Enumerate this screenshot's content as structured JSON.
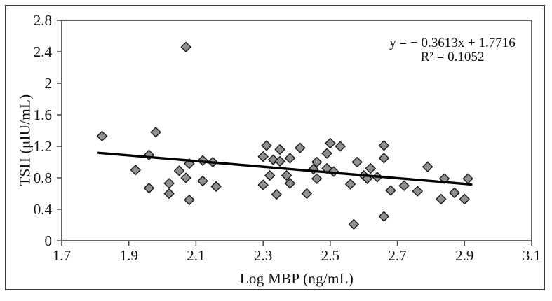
{
  "chart_data": {
    "type": "scatter",
    "title": "",
    "xlabel": "Log MBP (ng/mL)",
    "ylabel": "TSH (μIU/mL)",
    "xlim": [
      1.7,
      3.1
    ],
    "ylim": [
      0,
      2.8
    ],
    "x_ticks": [
      1.7,
      1.9,
      2.1,
      2.3,
      2.5,
      2.7,
      2.9,
      3.1
    ],
    "x_tick_labels": [
      "1.7",
      "1.9",
      "2.1",
      "2.3",
      "2.5",
      "2.7",
      "2.9",
      "3.1"
    ],
    "y_ticks": [
      0,
      0.4,
      0.8,
      1.2,
      1.6,
      2,
      2.4,
      2.8
    ],
    "y_tick_labels": [
      "0",
      "0.4",
      "0.8",
      "1.2",
      "1.6",
      "2",
      "2.4",
      "2.8"
    ],
    "grid": false,
    "legend": null,
    "annotation": {
      "line1": "y = − 0.3613x + 1.7716",
      "line2": "R² = 0.1052"
    },
    "trendline": {
      "slope": -0.3613,
      "intercept": 1.7716,
      "x_start": 1.81,
      "x_end": 2.92
    },
    "points": [
      [
        1.82,
        1.33
      ],
      [
        1.92,
        0.9
      ],
      [
        1.96,
        1.09
      ],
      [
        1.98,
        1.38
      ],
      [
        1.96,
        0.67
      ],
      [
        2.02,
        0.73
      ],
      [
        2.02,
        0.6
      ],
      [
        2.05,
        0.89
      ],
      [
        2.07,
        2.46
      ],
      [
        2.07,
        0.8
      ],
      [
        2.08,
        0.98
      ],
      [
        2.08,
        0.52
      ],
      [
        2.12,
        1.02
      ],
      [
        2.15,
        1.0
      ],
      [
        2.12,
        0.76
      ],
      [
        2.16,
        0.69
      ],
      [
        2.3,
        1.07
      ],
      [
        2.31,
        1.21
      ],
      [
        2.33,
        1.03
      ],
      [
        2.35,
        1.01
      ],
      [
        2.35,
        1.16
      ],
      [
        2.38,
        1.05
      ],
      [
        2.41,
        1.18
      ],
      [
        2.32,
        0.83
      ],
      [
        2.37,
        0.83
      ],
      [
        2.38,
        0.73
      ],
      [
        2.3,
        0.71
      ],
      [
        2.34,
        0.59
      ],
      [
        2.43,
        0.6
      ],
      [
        2.46,
        1.0
      ],
      [
        2.45,
        0.91
      ],
      [
        2.49,
        0.92
      ],
      [
        2.51,
        0.88
      ],
      [
        2.46,
        0.79
      ],
      [
        2.49,
        1.11
      ],
      [
        2.5,
        1.24
      ],
      [
        2.53,
        1.2
      ],
      [
        2.56,
        0.72
      ],
      [
        2.58,
        1.0
      ],
      [
        2.6,
        0.83
      ],
      [
        2.61,
        0.79
      ],
      [
        2.62,
        0.92
      ],
      [
        2.64,
        0.81
      ],
      [
        2.66,
        1.05
      ],
      [
        2.66,
        1.21
      ],
      [
        2.57,
        0.21
      ],
      [
        2.66,
        0.31
      ],
      [
        2.68,
        0.64
      ],
      [
        2.72,
        0.7
      ],
      [
        2.76,
        0.63
      ],
      [
        2.79,
        0.94
      ],
      [
        2.83,
        0.53
      ],
      [
        2.84,
        0.79
      ],
      [
        2.87,
        0.61
      ],
      [
        2.9,
        0.53
      ],
      [
        2.91,
        0.79
      ]
    ],
    "colors": {
      "marker_fill": "#8f8f8f",
      "marker_stroke": "#1b1b1b",
      "trendline": "#000000",
      "axis": "#555555",
      "tick": "#444444",
      "text": "#111111",
      "border": "#3a3a3a"
    }
  }
}
